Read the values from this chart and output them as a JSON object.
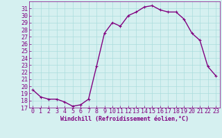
{
  "x": [
    0,
    1,
    2,
    3,
    4,
    5,
    6,
    7,
    8,
    9,
    10,
    11,
    12,
    13,
    14,
    15,
    16,
    17,
    18,
    19,
    20,
    21,
    22,
    23
  ],
  "y": [
    19.5,
    18.5,
    18.2,
    18.2,
    17.8,
    17.2,
    17.4,
    18.2,
    22.8,
    27.5,
    29.0,
    28.5,
    30.0,
    30.5,
    31.2,
    31.4,
    30.8,
    30.5,
    30.5,
    29.5,
    27.5,
    26.5,
    22.8,
    21.5
  ],
  "line_color": "#800080",
  "marker": "+",
  "marker_size": 3,
  "bg_color": "#d5f0f0",
  "grid_color": "#aadddd",
  "xlabel": "Windchill (Refroidissement éolien,°C)",
  "ylabel": "",
  "xlim": [
    -0.5,
    23.5
  ],
  "ylim": [
    17,
    32
  ],
  "yticks": [
    17,
    18,
    19,
    20,
    21,
    22,
    23,
    24,
    25,
    26,
    27,
    28,
    29,
    30,
    31
  ],
  "xticks": [
    0,
    1,
    2,
    3,
    4,
    5,
    6,
    7,
    8,
    9,
    10,
    11,
    12,
    13,
    14,
    15,
    16,
    17,
    18,
    19,
    20,
    21,
    22,
    23
  ],
  "tick_color": "#800080",
  "label_color": "#800080",
  "font_size": 6,
  "line_width": 1.0,
  "marker_edge_width": 0.8
}
